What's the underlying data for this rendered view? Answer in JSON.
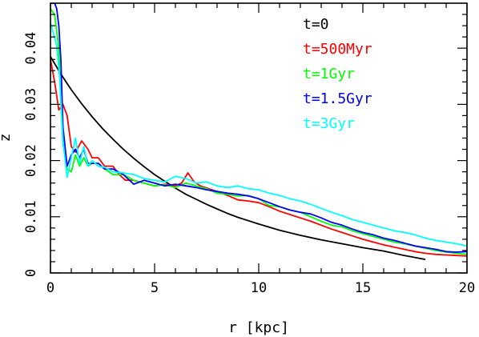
{
  "chart_data": {
    "type": "line",
    "title": "",
    "xlabel": "r [kpc]",
    "ylabel": "z",
    "xlim": [
      0,
      20
    ],
    "ylim": [
      0,
      0.048
    ],
    "x_ticks": [
      0,
      5,
      10,
      15,
      20
    ],
    "y_ticks": [
      0,
      0.01,
      0.02,
      0.03,
      0.04
    ],
    "x_tick_labels": [
      "0",
      "5",
      "10",
      "15",
      "20"
    ],
    "y_tick_labels": [
      "0",
      "0.01",
      "0.02",
      "0.03",
      "0.04"
    ],
    "grid": false,
    "legend_placement": "top-right",
    "series": [
      {
        "name": "t=0",
        "color": "#000000",
        "x": [
          0,
          0.5,
          1,
          1.5,
          2,
          2.5,
          3,
          3.5,
          4,
          4.5,
          5,
          5.5,
          6,
          6.5,
          7,
          7.5,
          8,
          8.5,
          9,
          9.5,
          10,
          11,
          12,
          13,
          14,
          15,
          16,
          17,
          18
        ],
        "y": [
          0.0385,
          0.0354,
          0.0326,
          0.0301,
          0.0278,
          0.0257,
          0.0238,
          0.022,
          0.0204,
          0.0189,
          0.0175,
          0.0163,
          0.0151,
          0.014,
          0.0131,
          0.0122,
          0.0114,
          0.0106,
          0.0099,
          0.0093,
          0.0087,
          0.0076,
          0.0067,
          0.0059,
          0.0052,
          0.0045,
          0.0039,
          0.0031,
          0.0024
        ]
      },
      {
        "name": "t=500Myr",
        "color": "#ff0000",
        "x": [
          0,
          0.2,
          0.4,
          0.6,
          0.8,
          1.0,
          1.2,
          1.5,
          1.8,
          2.0,
          2.3,
          2.6,
          3.0,
          3.3,
          3.6,
          4.0,
          4.5,
          5.0,
          5.5,
          6.0,
          6.3,
          6.6,
          6.9,
          7.2,
          7.6,
          8.0,
          8.5,
          9.0,
          9.5,
          10,
          10.5,
          11,
          11.5,
          12,
          12.5,
          13,
          13.5,
          14,
          14.5,
          15,
          15.5,
          16,
          16.5,
          17,
          17.5,
          18,
          18.5,
          19,
          19.5,
          20
        ],
        "y": [
          0.038,
          0.034,
          0.029,
          0.03,
          0.028,
          0.0225,
          0.0215,
          0.0235,
          0.022,
          0.0205,
          0.0205,
          0.019,
          0.019,
          0.0175,
          0.0165,
          0.0165,
          0.016,
          0.0155,
          0.0158,
          0.0155,
          0.016,
          0.0178,
          0.0162,
          0.0155,
          0.015,
          0.0145,
          0.0138,
          0.013,
          0.0128,
          0.0125,
          0.0118,
          0.011,
          0.0104,
          0.0098,
          0.0092,
          0.0085,
          0.0078,
          0.0072,
          0.0066,
          0.006,
          0.0055,
          0.005,
          0.0046,
          0.0042,
          0.0038,
          0.0035,
          0.0033,
          0.0032,
          0.0031,
          0.003
        ]
      },
      {
        "name": "t=1Gyr",
        "color": "#00ff00",
        "x": [
          0,
          0.2,
          0.4,
          0.5,
          0.6,
          0.8,
          1.0,
          1.2,
          1.4,
          1.6,
          1.8,
          2.0,
          2.3,
          2.6,
          3.0,
          3.5,
          4.0,
          4.5,
          5.0,
          5.5,
          6.0,
          6.5,
          7.0,
          7.5,
          8.0,
          8.5,
          9.0,
          9.5,
          10,
          10.5,
          11,
          11.5,
          12,
          12.5,
          13,
          13.5,
          14,
          14.5,
          15,
          15.5,
          16,
          16.5,
          17,
          17.5,
          18,
          18.5,
          19,
          19.5,
          20
        ],
        "y": [
          0.047,
          0.046,
          0.04,
          0.03,
          0.023,
          0.0185,
          0.018,
          0.021,
          0.019,
          0.0205,
          0.019,
          0.0195,
          0.0195,
          0.0185,
          0.0175,
          0.0175,
          0.0165,
          0.016,
          0.0155,
          0.0157,
          0.0152,
          0.016,
          0.0155,
          0.015,
          0.0142,
          0.014,
          0.0137,
          0.0138,
          0.0132,
          0.012,
          0.0118,
          0.0112,
          0.0108,
          0.01,
          0.0092,
          0.0085,
          0.0082,
          0.0075,
          0.007,
          0.0065,
          0.006,
          0.0055,
          0.0052,
          0.0048,
          0.0044,
          0.004,
          0.0037,
          0.0035,
          0.0033
        ]
      },
      {
        "name": "t=1.5Gyr",
        "color": "#0000ff",
        "x": [
          0,
          0.2,
          0.3,
          0.4,
          0.5,
          0.6,
          0.8,
          1.0,
          1.2,
          1.4,
          1.6,
          1.8,
          2.0,
          2.3,
          2.6,
          3.0,
          3.5,
          4.0,
          4.5,
          5.0,
          5.5,
          6.0,
          6.5,
          7.0,
          7.5,
          8.0,
          8.5,
          9.0,
          9.5,
          10,
          10.5,
          11,
          11.5,
          12,
          12.5,
          13,
          13.5,
          14,
          14.5,
          15,
          15.5,
          16,
          16.5,
          17,
          17.5,
          18,
          18.5,
          19,
          19.5,
          20
        ],
        "y": [
          0.048,
          0.048,
          0.047,
          0.044,
          0.038,
          0.026,
          0.019,
          0.021,
          0.022,
          0.0205,
          0.022,
          0.0195,
          0.0195,
          0.0195,
          0.0185,
          0.0185,
          0.0175,
          0.0158,
          0.0165,
          0.016,
          0.0155,
          0.0158,
          0.0155,
          0.0152,
          0.0148,
          0.0145,
          0.0142,
          0.014,
          0.0137,
          0.0132,
          0.0125,
          0.0118,
          0.0112,
          0.0108,
          0.0105,
          0.0098,
          0.009,
          0.0085,
          0.0078,
          0.0072,
          0.0068,
          0.0062,
          0.0058,
          0.0053,
          0.0048,
          0.0045,
          0.0042,
          0.0038,
          0.0037,
          0.0038
        ]
      },
      {
        "name": "t=3Gyr",
        "color": "#00ffff",
        "x": [
          0,
          0.15,
          0.3,
          0.45,
          0.6,
          0.8,
          1.0,
          1.2,
          1.4,
          1.6,
          1.8,
          2.0,
          2.3,
          2.6,
          3.0,
          3.5,
          4.0,
          4.5,
          5.0,
          5.5,
          6.0,
          6.5,
          7.0,
          7.5,
          8.0,
          8.5,
          9.0,
          9.5,
          10,
          10.5,
          11,
          11.5,
          12,
          12.5,
          13,
          13.5,
          14,
          14.5,
          15,
          15.5,
          16,
          16.5,
          17,
          17.5,
          18,
          18.5,
          19,
          19.5,
          20
        ],
        "y": [
          0.0445,
          0.0425,
          0.0405,
          0.0345,
          0.0235,
          0.017,
          0.0205,
          0.024,
          0.0195,
          0.0225,
          0.019,
          0.02,
          0.019,
          0.0188,
          0.018,
          0.0178,
          0.0175,
          0.0168,
          0.0165,
          0.0162,
          0.0172,
          0.0168,
          0.016,
          0.0162,
          0.0155,
          0.0152,
          0.0155,
          0.015,
          0.0148,
          0.0142,
          0.0138,
          0.0132,
          0.0128,
          0.0122,
          0.0115,
          0.0108,
          0.0102,
          0.0095,
          0.009,
          0.0085,
          0.008,
          0.0075,
          0.0072,
          0.0068,
          0.0062,
          0.0058,
          0.0055,
          0.0052,
          0.0048
        ]
      }
    ]
  }
}
